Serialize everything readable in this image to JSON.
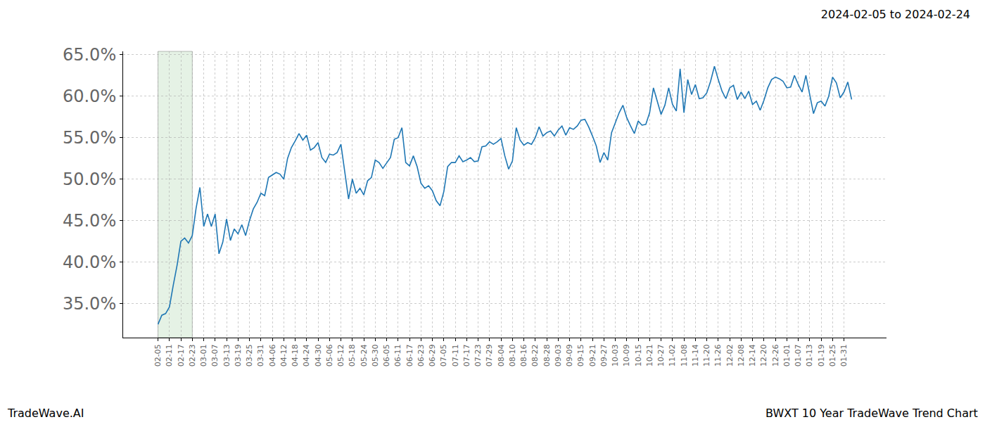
{
  "chart_data": {
    "type": "line",
    "title": "2024-02-05 to 2024-02-24",
    "annotations": [
      "TradeWave.AI",
      "BWXT 10 Year TradeWave Trend Chart"
    ],
    "color": "#1f77b4",
    "grid": true,
    "highlight": {
      "start": "02-05",
      "end": "02-23"
    },
    "ylim": [
      30.9,
      65.4
    ],
    "yticks": [
      {
        "value": 35,
        "label": "35.0%"
      },
      {
        "value": 40,
        "label": "40.0%"
      },
      {
        "value": 45,
        "label": "45.0%"
      },
      {
        "value": 50,
        "label": "50.0%"
      },
      {
        "value": 55,
        "label": "55.0%"
      },
      {
        "value": 60,
        "label": "60.0%"
      },
      {
        "value": 65,
        "label": "65.0%"
      }
    ],
    "categories": [
      "02-05",
      null,
      null,
      "02-11",
      null,
      null,
      "02-17",
      null,
      null,
      "02-23",
      null,
      null,
      "03-01",
      null,
      null,
      "03-07",
      null,
      null,
      "03-13",
      null,
      null,
      "03-19",
      null,
      null,
      "03-25",
      null,
      null,
      "03-31",
      null,
      null,
      "04-06",
      null,
      null,
      "04-12",
      null,
      null,
      "04-18",
      null,
      null,
      "04-24",
      null,
      null,
      "04-30",
      null,
      null,
      "05-06",
      null,
      null,
      "05-12",
      null,
      null,
      "05-18",
      null,
      null,
      "05-24",
      null,
      null,
      "05-30",
      null,
      null,
      "06-05",
      null,
      null,
      "06-11",
      null,
      null,
      "06-17",
      null,
      null,
      "06-23",
      null,
      null,
      "06-29",
      null,
      null,
      "07-05",
      null,
      null,
      "07-11",
      null,
      null,
      "07-17",
      null,
      null,
      "07-23",
      null,
      null,
      "07-29",
      null,
      null,
      "08-04",
      null,
      null,
      "08-10",
      null,
      null,
      "08-16",
      null,
      null,
      "08-22",
      null,
      null,
      "08-28",
      null,
      null,
      "09-03",
      null,
      null,
      "09-09",
      null,
      null,
      "09-15",
      null,
      null,
      "09-21",
      null,
      null,
      "09-27",
      null,
      null,
      "10-03",
      null,
      null,
      "10-09",
      null,
      null,
      "10-15",
      null,
      null,
      "10-21",
      null,
      null,
      "10-27",
      null,
      null,
      "11-02",
      null,
      null,
      "11-08",
      null,
      null,
      "11-14",
      null,
      null,
      "11-20",
      null,
      null,
      "11-26",
      null,
      null,
      "12-02",
      null,
      null,
      "12-08",
      null,
      null,
      "12-14",
      null,
      null,
      "12-20",
      null,
      null,
      "12-26",
      null,
      null,
      "01-01",
      null,
      null,
      "01-07",
      null,
      null,
      "01-13",
      null,
      null,
      "01-19",
      null,
      null,
      "01-25",
      null,
      null,
      "01-31",
      null,
      null
    ],
    "values": [
      32.5,
      33.6,
      33.8,
      34.6,
      37.2,
      39.6,
      42.5,
      42.9,
      42.3,
      43.2,
      46.5,
      49.0,
      44.3,
      45.8,
      44.3,
      45.8,
      41.0,
      42.4,
      45.2,
      42.6,
      44.0,
      43.4,
      44.5,
      43.2,
      45.0,
      46.4,
      47.2,
      48.3,
      48.0,
      50.2,
      50.5,
      50.8,
      50.6,
      50.0,
      52.5,
      53.8,
      54.6,
      55.5,
      54.7,
      55.3,
      53.5,
      53.8,
      54.4,
      52.6,
      52.0,
      53.0,
      52.9,
      53.2,
      54.2,
      51.0,
      47.6,
      50.0,
      48.3,
      48.9,
      48.1,
      49.8,
      50.2,
      52.3,
      52.0,
      51.3,
      52.0,
      52.6,
      54.8,
      55.0,
      56.2,
      52.0,
      51.6,
      52.8,
      51.5,
      49.5,
      48.9,
      49.2,
      48.6,
      47.4,
      46.8,
      48.5,
      51.5,
      52.0,
      52.0,
      52.8,
      52.1,
      52.3,
      52.6,
      52.1,
      52.2,
      53.9,
      54.0,
      54.5,
      54.2,
      54.5,
      54.9,
      52.8,
      51.2,
      52.2,
      56.2,
      54.7,
      54.1,
      54.4,
      54.2,
      55.0,
      56.3,
      55.2,
      55.6,
      55.8,
      55.2,
      55.9,
      56.4,
      55.3,
      56.2,
      56.0,
      56.4,
      57.1,
      57.2,
      56.3,
      55.2,
      54.0,
      52.0,
      53.2,
      52.3,
      55.6,
      56.8,
      58.0,
      58.9,
      57.4,
      56.4,
      55.5,
      57.0,
      56.5,
      56.6,
      58.0,
      61.0,
      59.5,
      57.8,
      58.9,
      61.0,
      59.0,
      58.2,
      63.3,
      58.0,
      62.0,
      60.2,
      61.4,
      59.7,
      59.8,
      60.4,
      61.8,
      63.6,
      62.0,
      60.6,
      59.7,
      61.0,
      61.3,
      59.6,
      60.5,
      59.7,
      60.6,
      59.0,
      59.4,
      58.3,
      59.5,
      61.0,
      62.0,
      62.3,
      62.1,
      61.8,
      61.0,
      61.1,
      62.5,
      61.4,
      60.5,
      62.5,
      60.2,
      57.9,
      59.2,
      59.4,
      58.8,
      60.0,
      62.3,
      61.6,
      59.8,
      60.5,
      61.7,
      59.6
    ]
  }
}
